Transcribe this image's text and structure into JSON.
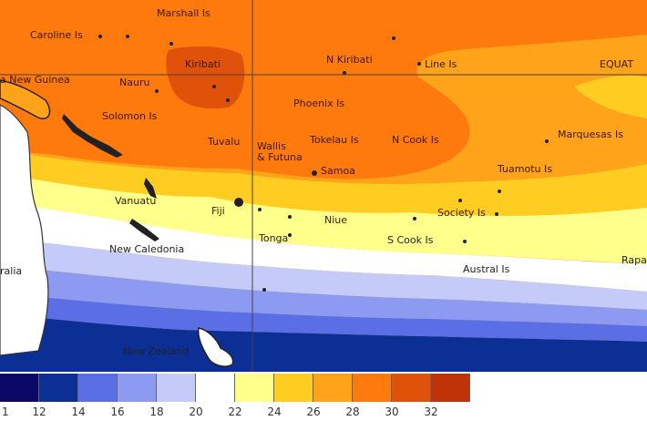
{
  "places": [
    {
      "id": "marshall-is",
      "text": "Marshall Is"
    },
    {
      "id": "caroline-is",
      "text": "Caroline Is"
    },
    {
      "id": "kiribati",
      "text": "Kiribati"
    },
    {
      "id": "n-kiribati",
      "text": "N Kiribati"
    },
    {
      "id": "line-is",
      "text": "Line Is"
    },
    {
      "id": "equator",
      "text": "EQUAT"
    },
    {
      "id": "papua-new-guinea",
      "text": "a New Guinea"
    },
    {
      "id": "nauru",
      "text": "Nauru"
    },
    {
      "id": "solomon-is",
      "text": "Solomon Is"
    },
    {
      "id": "phoenix-is",
      "text": "Phoenix Is"
    },
    {
      "id": "tuvalu",
      "text": "Tuvalu"
    },
    {
      "id": "tokelau-is",
      "text": "Tokelau Is"
    },
    {
      "id": "n-cook-is",
      "text": "N Cook Is"
    },
    {
      "id": "marquesas-is",
      "text": "Marquesas Is"
    },
    {
      "id": "wallis-futuna",
      "text": "Wallis\n& Futuna"
    },
    {
      "id": "samoa",
      "text": "Samoa"
    },
    {
      "id": "tuamotu-is",
      "text": "Tuamotu Is"
    },
    {
      "id": "vanuatu",
      "text": "Vanuatu"
    },
    {
      "id": "fiji",
      "text": "Fiji"
    },
    {
      "id": "niue",
      "text": "Niue"
    },
    {
      "id": "society-is",
      "text": "Society Is"
    },
    {
      "id": "new-caledonia",
      "text": "New Caledonia"
    },
    {
      "id": "tonga",
      "text": "Tonga"
    },
    {
      "id": "s-cook-is",
      "text": "S Cook Is"
    },
    {
      "id": "austral-is",
      "text": "Austral Is"
    },
    {
      "id": "rapa",
      "text": "Rapa"
    },
    {
      "id": "australia",
      "text": "ralia"
    },
    {
      "id": "new-zealand",
      "text": "New Zealand"
    }
  ],
  "legend": {
    "colors": [
      "#0a0a66",
      "#0c2f96",
      "#5a6ee6",
      "#8c9af2",
      "#c4cbf8",
      "#ffffff",
      "#ffff8c",
      "#ffcc22",
      "#ffa31a",
      "#ff7a0d",
      "#e0520a",
      "#c03208"
    ],
    "ticks": [
      "1",
      "12",
      "14",
      "16",
      "18",
      "20",
      "22",
      "24",
      "26",
      "28",
      "30",
      "32"
    ]
  },
  "colors": {
    "land": "#ffffff",
    "coast": "#333333",
    "grid": "#444444"
  }
}
